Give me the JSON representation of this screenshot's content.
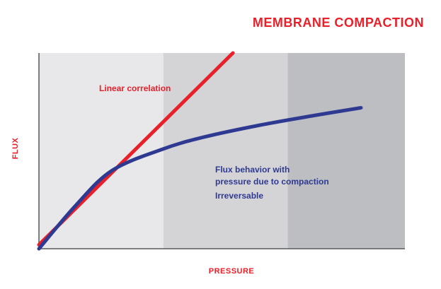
{
  "chart_data": {
    "type": "line",
    "title": "MEMBRANE COMPACTION",
    "xlabel": "PRESSURE",
    "ylabel": "FLUX",
    "xlim": [
      0,
      100
    ],
    "ylim": [
      0,
      100
    ],
    "background_bands": [
      {
        "from": 0,
        "to": 34,
        "color": "#e8e8ea"
      },
      {
        "from": 34,
        "to": 68,
        "color": "#d4d4d7"
      },
      {
        "from": 68,
        "to": 100,
        "color": "#bdbec1"
      }
    ],
    "series": [
      {
        "name": "Linear correlation",
        "color": "#e8202a",
        "x": [
          0,
          53
        ],
        "y": [
          2,
          100
        ]
      },
      {
        "name": "Flux behavior with pressure due to compaction",
        "color": "#2e3992",
        "x": [
          0,
          10,
          20,
          34,
          45,
          60,
          75,
          88
        ],
        "y": [
          0,
          22,
          40,
          51,
          57,
          63,
          68,
          72
        ]
      }
    ],
    "annotations": [
      {
        "text": "Linear correlation",
        "color": "#e8202a"
      },
      {
        "text": "Flux behavior with",
        "color": "#2e3992"
      },
      {
        "text": "pressure due to compaction",
        "color": "#2e3992"
      },
      {
        "text": "Irreversable",
        "color": "#2e3992"
      }
    ],
    "grid": false,
    "legend": "none",
    "title_color": "#e8202a",
    "axis_label_color": "#e8202a",
    "axis_color": "#58595b"
  }
}
